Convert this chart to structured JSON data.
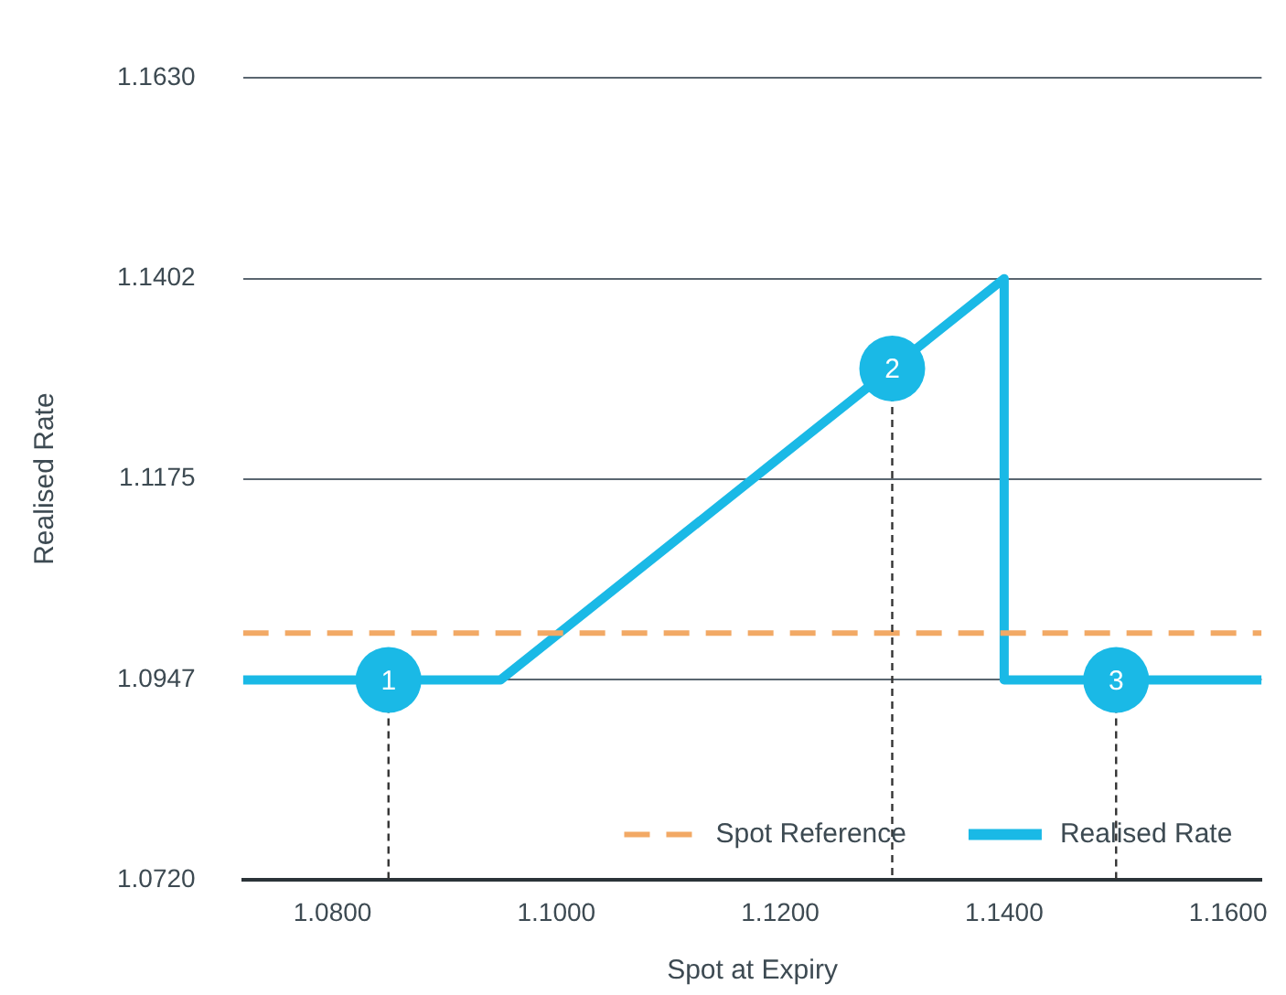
{
  "chart_data": {
    "type": "line",
    "xlabel": "Spot at Expiry",
    "ylabel": "Realised Rate",
    "xlim": [
      1.072,
      1.163
    ],
    "ylim": [
      1.072,
      1.163
    ],
    "xticks": [
      {
        "value": 1.08,
        "label": "1.0800"
      },
      {
        "value": 1.1,
        "label": "1.1000"
      },
      {
        "value": 1.12,
        "label": "1.1200"
      },
      {
        "value": 1.14,
        "label": "1.1400"
      },
      {
        "value": 1.16,
        "label": "1.1600"
      }
    ],
    "yticks": [
      {
        "value": 1.072,
        "label": "1.0720"
      },
      {
        "value": 1.0947,
        "label": "1.0947"
      },
      {
        "value": 1.1175,
        "label": "1.1175"
      },
      {
        "value": 1.1402,
        "label": "1.1402"
      },
      {
        "value": 1.163,
        "label": "1.1630"
      }
    ],
    "grid": "y",
    "legend": "bottom right",
    "marker": "none",
    "series": [
      {
        "name": "Spot Reference",
        "line_style": "dashed",
        "color": "#f2a965",
        "x": [
          1.072,
          1.163
        ],
        "values": [
          1.1,
          1.1
        ]
      },
      {
        "name": "Realised Rate",
        "line_style": "solid",
        "color": "#1ab9e6",
        "x": [
          1.072,
          1.095,
          1.14,
          1.14,
          1.163
        ],
        "values": [
          1.0947,
          1.0947,
          1.1402,
          1.0947,
          1.0947
        ]
      }
    ],
    "annotations": [
      {
        "text": "1",
        "x": 1.085,
        "y": 1.0947
      },
      {
        "text": "2",
        "x": 1.13,
        "y": 1.13
      },
      {
        "text": "3",
        "x": 1.15,
        "y": 1.0947
      }
    ]
  }
}
